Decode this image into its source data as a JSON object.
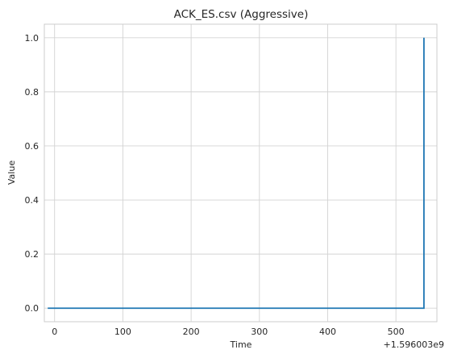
{
  "chart_data": {
    "type": "line",
    "title": "ACK_ES.csv (Aggressive)",
    "xlabel": "Time",
    "ylabel": "Value",
    "x_offset_label": "+1.596003e9",
    "xlim": [
      -15,
      560
    ],
    "ylim": [
      -0.05,
      1.05
    ],
    "xticks": [
      0,
      100,
      200,
      300,
      400,
      500
    ],
    "yticks": [
      0.0,
      0.2,
      0.4,
      0.6,
      0.8,
      1.0
    ],
    "ytick_labels": [
      "0.0",
      "0.2",
      "0.4",
      "0.6",
      "0.8",
      "1.0"
    ],
    "grid": true,
    "series": [
      {
        "color": "#1f77b4",
        "x": [
          -10,
          541,
          541
        ],
        "y": [
          0,
          0,
          1
        ]
      }
    ]
  }
}
